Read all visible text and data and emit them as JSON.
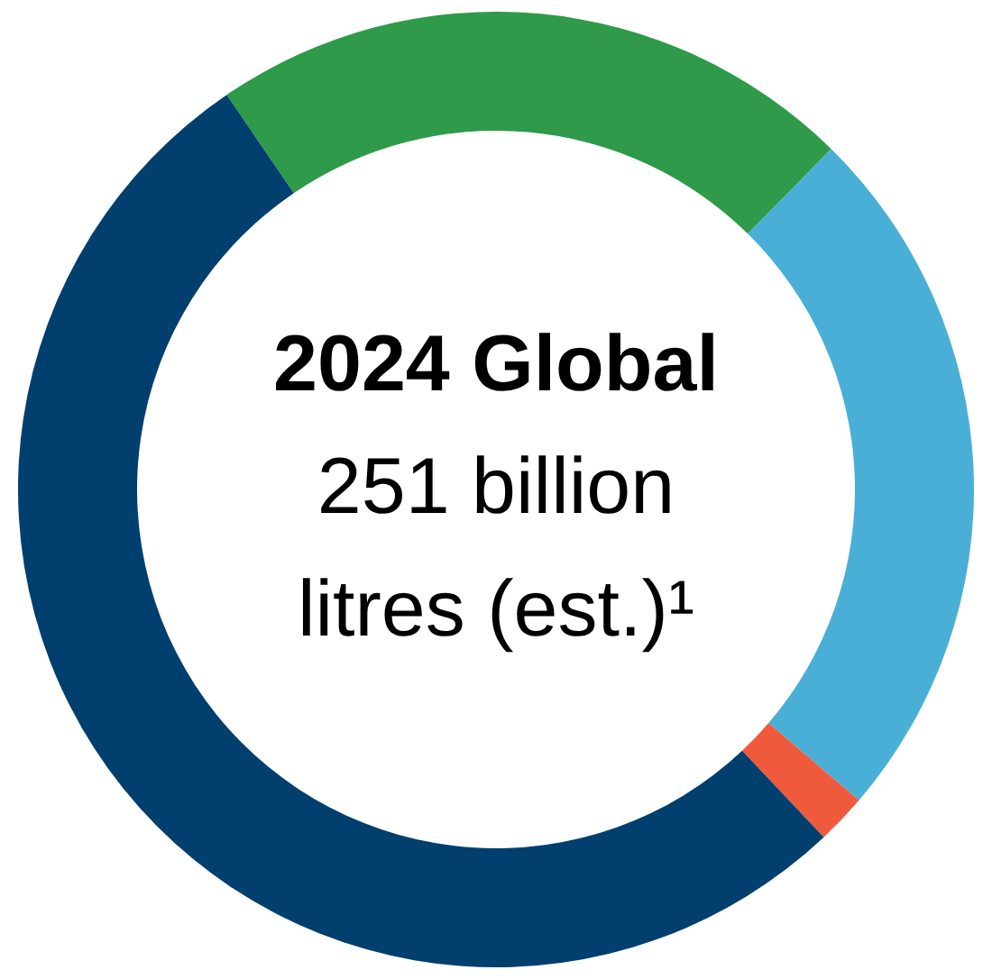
{
  "chart_data": {
    "type": "donut",
    "title": "2024 Global",
    "annotations": [
      "251 billion",
      "litres (est.)¹"
    ],
    "categories": [
      null,
      null,
      null,
      null
    ],
    "values": [
      21.9,
      23.9,
      1.7,
      52.5
    ],
    "colors": [
      "#2e9a4a",
      "#4aafd6",
      "#f05a3c",
      "#003f6e"
    ]
  }
}
